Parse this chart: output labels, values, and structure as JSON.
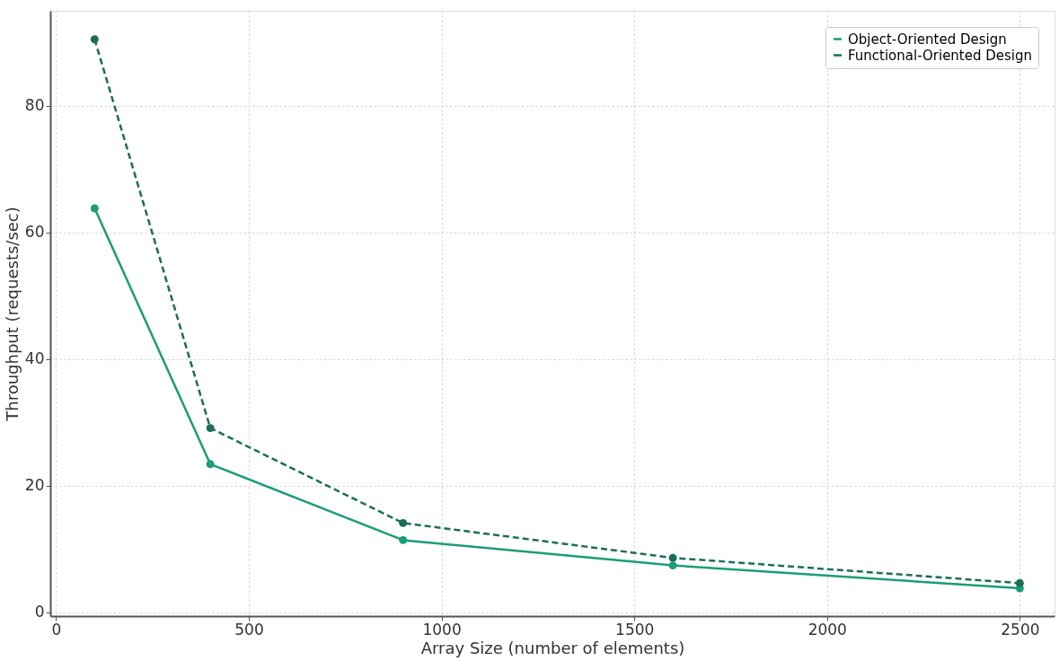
{
  "chart_data": {
    "type": "line",
    "xlabel": "Array Size (number of elements)",
    "ylabel": "Throughput (requests/sec)",
    "x": [
      100,
      400,
      900,
      1600,
      2500
    ],
    "series": [
      {
        "name": "Object-Oriented Design",
        "color": "#1a9e77",
        "line_style": "solid",
        "values": [
          63.8,
          23.4,
          11.4,
          7.4,
          3.8
        ]
      },
      {
        "name": "Functional-Oriented Design",
        "color": "#1b6f57",
        "line_style": "dashed",
        "values": [
          90.5,
          29.1,
          14.1,
          8.6,
          4.6
        ]
      }
    ],
    "xlim": [
      -15,
      2590
    ],
    "ylim": [
      -0.6,
      95
    ],
    "xticks": [
      0,
      500,
      1000,
      1500,
      2000,
      2500
    ],
    "yticks": [
      0,
      20,
      40,
      60,
      80
    ],
    "grid": true,
    "legend": "top right",
    "marker": "circle"
  }
}
